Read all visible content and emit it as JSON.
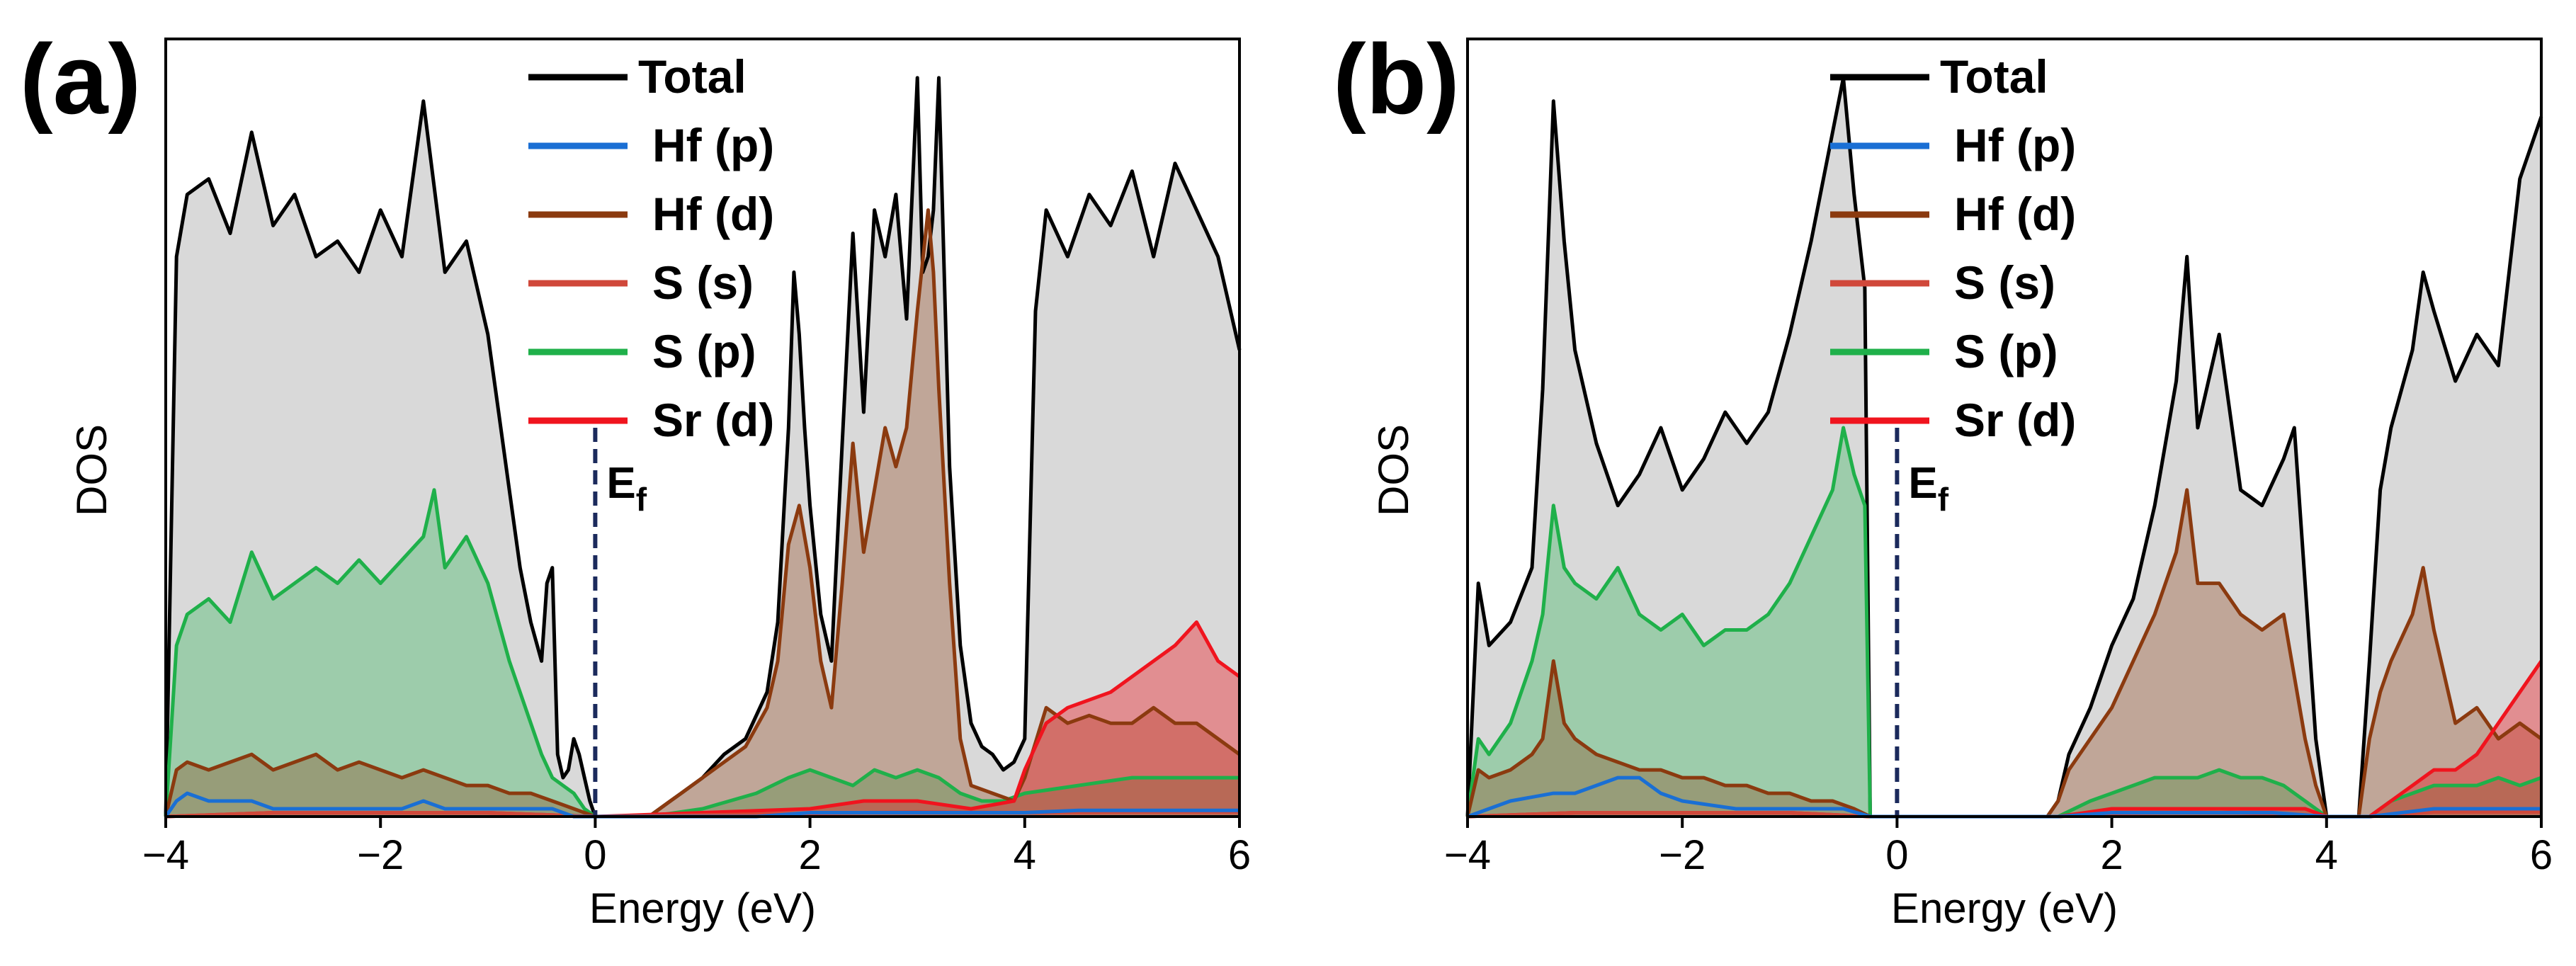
{
  "colors": {
    "total": "#000000",
    "hf_p": "#1a6fd4",
    "hf_d": "#8b3a0f",
    "s_s": "#d0483a",
    "s_p": "#1fb04a",
    "sr_d": "#f0141e",
    "fill_total": "#d9d9d9",
    "ef_line": "#1b2a5c"
  },
  "chart_data": [
    {
      "type": "line",
      "panel": "(a)",
      "xlabel": "Energy (eV)",
      "ylabel": "DOS",
      "xlim": [
        -4,
        6
      ],
      "ylim": [
        0,
        1.0
      ],
      "xticks": [
        -4,
        -2,
        0,
        2,
        4,
        6
      ],
      "xtick_labels": [
        "−4",
        "−2",
        "0",
        "2",
        "4",
        "6"
      ],
      "grid": false,
      "legend_position": "top-center",
      "annotation": {
        "text": "E",
        "subscript": "f",
        "x": 0
      },
      "series": [
        {
          "name": "Total",
          "key": "total",
          "x": [
            -4.0,
            -3.9,
            -3.8,
            -3.6,
            -3.4,
            -3.2,
            -3.0,
            -2.8,
            -2.6,
            -2.4,
            -2.2,
            -2.0,
            -1.8,
            -1.6,
            -1.4,
            -1.2,
            -1.0,
            -0.9,
            -0.8,
            -0.7,
            -0.6,
            -0.5,
            -0.45,
            -0.4,
            -0.35,
            -0.3,
            -0.25,
            -0.2,
            -0.15,
            -0.1,
            -0.05,
            0.0,
            0.2,
            0.5,
            0.7,
            0.8,
            1.0,
            1.2,
            1.4,
            1.6,
            1.7,
            1.8,
            1.85,
            1.9,
            1.95,
            2.0,
            2.1,
            2.2,
            2.3,
            2.4,
            2.5,
            2.6,
            2.7,
            2.8,
            2.9,
            3.0,
            3.05,
            3.1,
            3.15,
            3.2,
            3.3,
            3.4,
            3.5,
            3.6,
            3.7,
            3.8,
            3.9,
            4.0,
            4.1,
            4.2,
            4.4,
            4.6,
            4.8,
            5.0,
            5.2,
            5.4,
            5.6,
            5.8,
            6.0
          ],
          "y": [
            0.0,
            0.72,
            0.8,
            0.82,
            0.75,
            0.88,
            0.76,
            0.8,
            0.72,
            0.74,
            0.7,
            0.78,
            0.72,
            0.92,
            0.7,
            0.74,
            0.62,
            0.52,
            0.42,
            0.32,
            0.25,
            0.2,
            0.3,
            0.32,
            0.08,
            0.05,
            0.06,
            0.1,
            0.08,
            0.05,
            0.02,
            0.0,
            0.0,
            0.0,
            0.02,
            0.03,
            0.05,
            0.08,
            0.1,
            0.16,
            0.25,
            0.5,
            0.7,
            0.62,
            0.5,
            0.4,
            0.26,
            0.2,
            0.48,
            0.75,
            0.52,
            0.78,
            0.72,
            0.8,
            0.64,
            0.95,
            0.7,
            0.72,
            0.78,
            0.95,
            0.45,
            0.22,
            0.12,
            0.09,
            0.08,
            0.06,
            0.07,
            0.1,
            0.65,
            0.78,
            0.72,
            0.8,
            0.76,
            0.83,
            0.72,
            0.84,
            0.78,
            0.72,
            0.6
          ]
        },
        {
          "name": "Hf (p)",
          "key": "hf_p",
          "x": [
            -4.0,
            -3.9,
            -3.8,
            -3.6,
            -3.4,
            -3.2,
            -3.0,
            -2.8,
            -2.6,
            -2.4,
            -2.2,
            -2.0,
            -1.8,
            -1.6,
            -1.4,
            -1.2,
            -1.0,
            -0.8,
            -0.6,
            -0.4,
            -0.2,
            0.0,
            0.7,
            1.0,
            1.5,
            2.0,
            2.5,
            3.0,
            3.5,
            4.0,
            4.5,
            5.0,
            5.5,
            6.0
          ],
          "y": [
            0.0,
            0.02,
            0.03,
            0.02,
            0.02,
            0.02,
            0.01,
            0.01,
            0.01,
            0.01,
            0.01,
            0.01,
            0.01,
            0.02,
            0.01,
            0.01,
            0.01,
            0.01,
            0.01,
            0.01,
            0.0,
            0.0,
            0.0,
            0.0,
            0.0,
            0.005,
            0.005,
            0.005,
            0.005,
            0.005,
            0.008,
            0.008,
            0.008,
            0.008
          ]
        },
        {
          "name": "Hf (d)",
          "key": "hf_d",
          "x": [
            -4.0,
            -3.9,
            -3.8,
            -3.6,
            -3.4,
            -3.2,
            -3.0,
            -2.8,
            -2.6,
            -2.4,
            -2.2,
            -2.0,
            -1.8,
            -1.6,
            -1.4,
            -1.2,
            -1.0,
            -0.8,
            -0.6,
            -0.4,
            -0.2,
            0.0,
            0.2,
            0.5,
            0.7,
            0.8,
            1.0,
            1.2,
            1.4,
            1.6,
            1.7,
            1.8,
            1.9,
            2.0,
            2.1,
            2.2,
            2.3,
            2.4,
            2.5,
            2.6,
            2.7,
            2.8,
            2.9,
            3.0,
            3.1,
            3.15,
            3.2,
            3.3,
            3.4,
            3.5,
            3.7,
            3.9,
            4.0,
            4.2,
            4.4,
            4.6,
            4.8,
            5.0,
            5.2,
            5.4,
            5.6,
            5.8,
            6.0
          ],
          "y": [
            0.0,
            0.06,
            0.07,
            0.06,
            0.07,
            0.08,
            0.06,
            0.07,
            0.08,
            0.06,
            0.07,
            0.06,
            0.05,
            0.06,
            0.05,
            0.04,
            0.04,
            0.03,
            0.03,
            0.02,
            0.01,
            0.0,
            0.0,
            0.0,
            0.02,
            0.03,
            0.05,
            0.07,
            0.09,
            0.14,
            0.2,
            0.35,
            0.4,
            0.32,
            0.2,
            0.14,
            0.3,
            0.48,
            0.34,
            0.42,
            0.5,
            0.45,
            0.5,
            0.65,
            0.78,
            0.7,
            0.55,
            0.3,
            0.1,
            0.04,
            0.03,
            0.02,
            0.05,
            0.14,
            0.12,
            0.13,
            0.12,
            0.12,
            0.14,
            0.12,
            0.12,
            0.1,
            0.08
          ]
        },
        {
          "name": "S (s)",
          "key": "s_s",
          "x": [
            -4.0,
            -3.0,
            -2.0,
            -1.0,
            0.0,
            1.0,
            2.0,
            3.0,
            4.0,
            5.0,
            6.0
          ],
          "y": [
            0.0,
            0.005,
            0.005,
            0.005,
            0.0,
            0.002,
            0.004,
            0.006,
            0.005,
            0.006,
            0.006
          ]
        },
        {
          "name": "S (p)",
          "key": "s_p",
          "x": [
            -4.0,
            -3.9,
            -3.8,
            -3.6,
            -3.4,
            -3.2,
            -3.0,
            -2.8,
            -2.6,
            -2.4,
            -2.2,
            -2.0,
            -1.8,
            -1.6,
            -1.5,
            -1.4,
            -1.2,
            -1.0,
            -0.8,
            -0.6,
            -0.5,
            -0.4,
            -0.3,
            -0.2,
            -0.1,
            0.0,
            0.5,
            1.0,
            1.5,
            1.8,
            2.0,
            2.2,
            2.4,
            2.6,
            2.8,
            3.0,
            3.2,
            3.4,
            3.6,
            3.8,
            4.0,
            4.5,
            5.0,
            5.5,
            6.0
          ],
          "y": [
            0.0,
            0.22,
            0.26,
            0.28,
            0.25,
            0.34,
            0.28,
            0.3,
            0.32,
            0.3,
            0.33,
            0.3,
            0.33,
            0.36,
            0.42,
            0.32,
            0.36,
            0.3,
            0.2,
            0.12,
            0.08,
            0.05,
            0.04,
            0.03,
            0.01,
            0.0,
            0.0,
            0.01,
            0.03,
            0.05,
            0.06,
            0.05,
            0.04,
            0.06,
            0.05,
            0.06,
            0.05,
            0.03,
            0.02,
            0.02,
            0.03,
            0.04,
            0.05,
            0.05,
            0.05
          ]
        },
        {
          "name": "Sr (d)",
          "key": "sr_d",
          "x": [
            -4.0,
            -3.0,
            -2.0,
            -1.0,
            0.0,
            1.0,
            2.0,
            2.5,
            3.0,
            3.5,
            3.9,
            4.0,
            4.2,
            4.4,
            4.6,
            4.8,
            5.0,
            5.2,
            5.4,
            5.6,
            5.8,
            6.0
          ],
          "y": [
            0.0,
            0.005,
            0.005,
            0.005,
            0.0,
            0.005,
            0.01,
            0.02,
            0.02,
            0.01,
            0.02,
            0.06,
            0.12,
            0.14,
            0.15,
            0.16,
            0.18,
            0.2,
            0.22,
            0.25,
            0.2,
            0.18
          ]
        }
      ]
    },
    {
      "type": "line",
      "panel": "(b)",
      "xlabel": "Energy (eV)",
      "ylabel": "DOS",
      "xlim": [
        -4,
        6
      ],
      "ylim": [
        0,
        1.0
      ],
      "xticks": [
        -4,
        -2,
        0,
        2,
        4,
        6
      ],
      "xtick_labels": [
        "−4",
        "−2",
        "0",
        "2",
        "4",
        "6"
      ],
      "grid": false,
      "legend_position": "top-center",
      "annotation": {
        "text": "E",
        "subscript": "f",
        "x": 0
      },
      "series": [
        {
          "name": "Total",
          "key": "total",
          "x": [
            -4.0,
            -3.9,
            -3.8,
            -3.6,
            -3.4,
            -3.3,
            -3.2,
            -3.1,
            -3.0,
            -2.8,
            -2.6,
            -2.4,
            -2.2,
            -2.0,
            -1.8,
            -1.6,
            -1.4,
            -1.2,
            -1.0,
            -0.8,
            -0.6,
            -0.5,
            -0.4,
            -0.3,
            -0.25,
            0.0,
            0.5,
            1.0,
            1.4,
            1.5,
            1.6,
            1.8,
            2.0,
            2.2,
            2.4,
            2.6,
            2.7,
            2.8,
            3.0,
            3.2,
            3.4,
            3.6,
            3.7,
            3.8,
            3.9,
            4.0,
            4.3,
            4.4,
            4.5,
            4.6,
            4.8,
            4.9,
            5.0,
            5.2,
            5.4,
            5.6,
            5.8,
            6.0
          ],
          "y": [
            0.0,
            0.3,
            0.22,
            0.25,
            0.32,
            0.55,
            0.92,
            0.74,
            0.6,
            0.48,
            0.4,
            0.44,
            0.5,
            0.42,
            0.46,
            0.52,
            0.48,
            0.52,
            0.62,
            0.74,
            0.88,
            0.95,
            0.8,
            0.68,
            0.0,
            0.0,
            0.0,
            0.0,
            0.0,
            0.02,
            0.08,
            0.14,
            0.22,
            0.28,
            0.4,
            0.56,
            0.72,
            0.5,
            0.62,
            0.42,
            0.4,
            0.46,
            0.5,
            0.3,
            0.1,
            0.0,
            0.0,
            0.2,
            0.42,
            0.5,
            0.6,
            0.7,
            0.65,
            0.56,
            0.62,
            0.58,
            0.82,
            0.9
          ]
        },
        {
          "name": "Hf (p)",
          "key": "hf_p",
          "x": [
            -4.0,
            -3.6,
            -3.2,
            -3.0,
            -2.8,
            -2.6,
            -2.4,
            -2.2,
            -2.0,
            -1.5,
            -1.0,
            -0.5,
            -0.25,
            0.0,
            1.5,
            2.0,
            2.5,
            3.0,
            3.5,
            4.0,
            4.4,
            5.0,
            5.5,
            6.0
          ],
          "y": [
            0.0,
            0.02,
            0.03,
            0.03,
            0.04,
            0.05,
            0.05,
            0.03,
            0.02,
            0.01,
            0.01,
            0.01,
            0.0,
            0.0,
            0.0,
            0.005,
            0.005,
            0.005,
            0.005,
            0.0,
            0.0,
            0.01,
            0.01,
            0.01
          ]
        },
        {
          "name": "Hf (d)",
          "key": "hf_d",
          "x": [
            -4.0,
            -3.9,
            -3.8,
            -3.6,
            -3.4,
            -3.3,
            -3.2,
            -3.1,
            -3.0,
            -2.8,
            -2.6,
            -2.4,
            -2.2,
            -2.0,
            -1.8,
            -1.6,
            -1.4,
            -1.2,
            -1.0,
            -0.8,
            -0.6,
            -0.4,
            -0.25,
            0.0,
            1.4,
            1.5,
            1.6,
            1.8,
            2.0,
            2.2,
            2.4,
            2.6,
            2.7,
            2.8,
            3.0,
            3.2,
            3.4,
            3.6,
            3.8,
            3.9,
            4.0,
            4.3,
            4.4,
            4.5,
            4.6,
            4.8,
            4.9,
            5.0,
            5.2,
            5.4,
            5.6,
            5.8,
            6.0
          ],
          "y": [
            0.0,
            0.06,
            0.05,
            0.06,
            0.08,
            0.1,
            0.2,
            0.12,
            0.1,
            0.08,
            0.07,
            0.06,
            0.06,
            0.05,
            0.05,
            0.04,
            0.04,
            0.03,
            0.03,
            0.02,
            0.02,
            0.01,
            0.0,
            0.0,
            0.0,
            0.02,
            0.06,
            0.1,
            0.14,
            0.2,
            0.26,
            0.34,
            0.42,
            0.3,
            0.3,
            0.26,
            0.24,
            0.26,
            0.1,
            0.04,
            0.0,
            0.0,
            0.1,
            0.16,
            0.2,
            0.26,
            0.32,
            0.24,
            0.12,
            0.14,
            0.1,
            0.12,
            0.1
          ]
        },
        {
          "name": "S (s)",
          "key": "s_s",
          "x": [
            -4.0,
            -3.0,
            -2.0,
            -1.0,
            -0.25,
            0.0,
            1.5,
            2.0,
            3.0,
            4.0,
            4.4,
            5.0,
            6.0
          ],
          "y": [
            0.0,
            0.005,
            0.005,
            0.005,
            0.0,
            0.0,
            0.0,
            0.004,
            0.006,
            0.0,
            0.0,
            0.006,
            0.006
          ]
        },
        {
          "name": "S (p)",
          "key": "s_p",
          "x": [
            -4.0,
            -3.9,
            -3.8,
            -3.6,
            -3.4,
            -3.3,
            -3.2,
            -3.1,
            -3.0,
            -2.8,
            -2.6,
            -2.4,
            -2.2,
            -2.0,
            -1.8,
            -1.6,
            -1.4,
            -1.2,
            -1.0,
            -0.8,
            -0.6,
            -0.5,
            -0.4,
            -0.3,
            -0.25,
            0.0,
            1.5,
            1.8,
            2.0,
            2.2,
            2.4,
            2.6,
            2.8,
            3.0,
            3.2,
            3.4,
            3.6,
            3.8,
            4.0,
            4.4,
            4.6,
            4.8,
            5.0,
            5.2,
            5.4,
            5.6,
            5.8,
            6.0
          ],
          "y": [
            0.0,
            0.1,
            0.08,
            0.12,
            0.2,
            0.26,
            0.4,
            0.32,
            0.3,
            0.28,
            0.32,
            0.26,
            0.24,
            0.26,
            0.22,
            0.24,
            0.24,
            0.26,
            0.3,
            0.36,
            0.42,
            0.5,
            0.44,
            0.4,
            0.0,
            0.0,
            0.0,
            0.02,
            0.03,
            0.04,
            0.05,
            0.05,
            0.05,
            0.06,
            0.05,
            0.05,
            0.04,
            0.02,
            0.0,
            0.0,
            0.02,
            0.03,
            0.04,
            0.04,
            0.04,
            0.05,
            0.04,
            0.05
          ]
        },
        {
          "name": "Sr (d)",
          "key": "sr_d",
          "x": [
            -4.0,
            -3.0,
            -2.0,
            -1.0,
            -0.25,
            0.0,
            1.5,
            2.0,
            3.0,
            3.8,
            4.0,
            4.4,
            4.6,
            4.8,
            5.0,
            5.2,
            5.4,
            5.6,
            5.8,
            6.0
          ],
          "y": [
            0.0,
            0.005,
            0.005,
            0.005,
            0.0,
            0.0,
            0.0,
            0.01,
            0.01,
            0.01,
            0.0,
            0.0,
            0.02,
            0.04,
            0.06,
            0.06,
            0.08,
            0.12,
            0.16,
            0.2
          ]
        }
      ]
    }
  ]
}
